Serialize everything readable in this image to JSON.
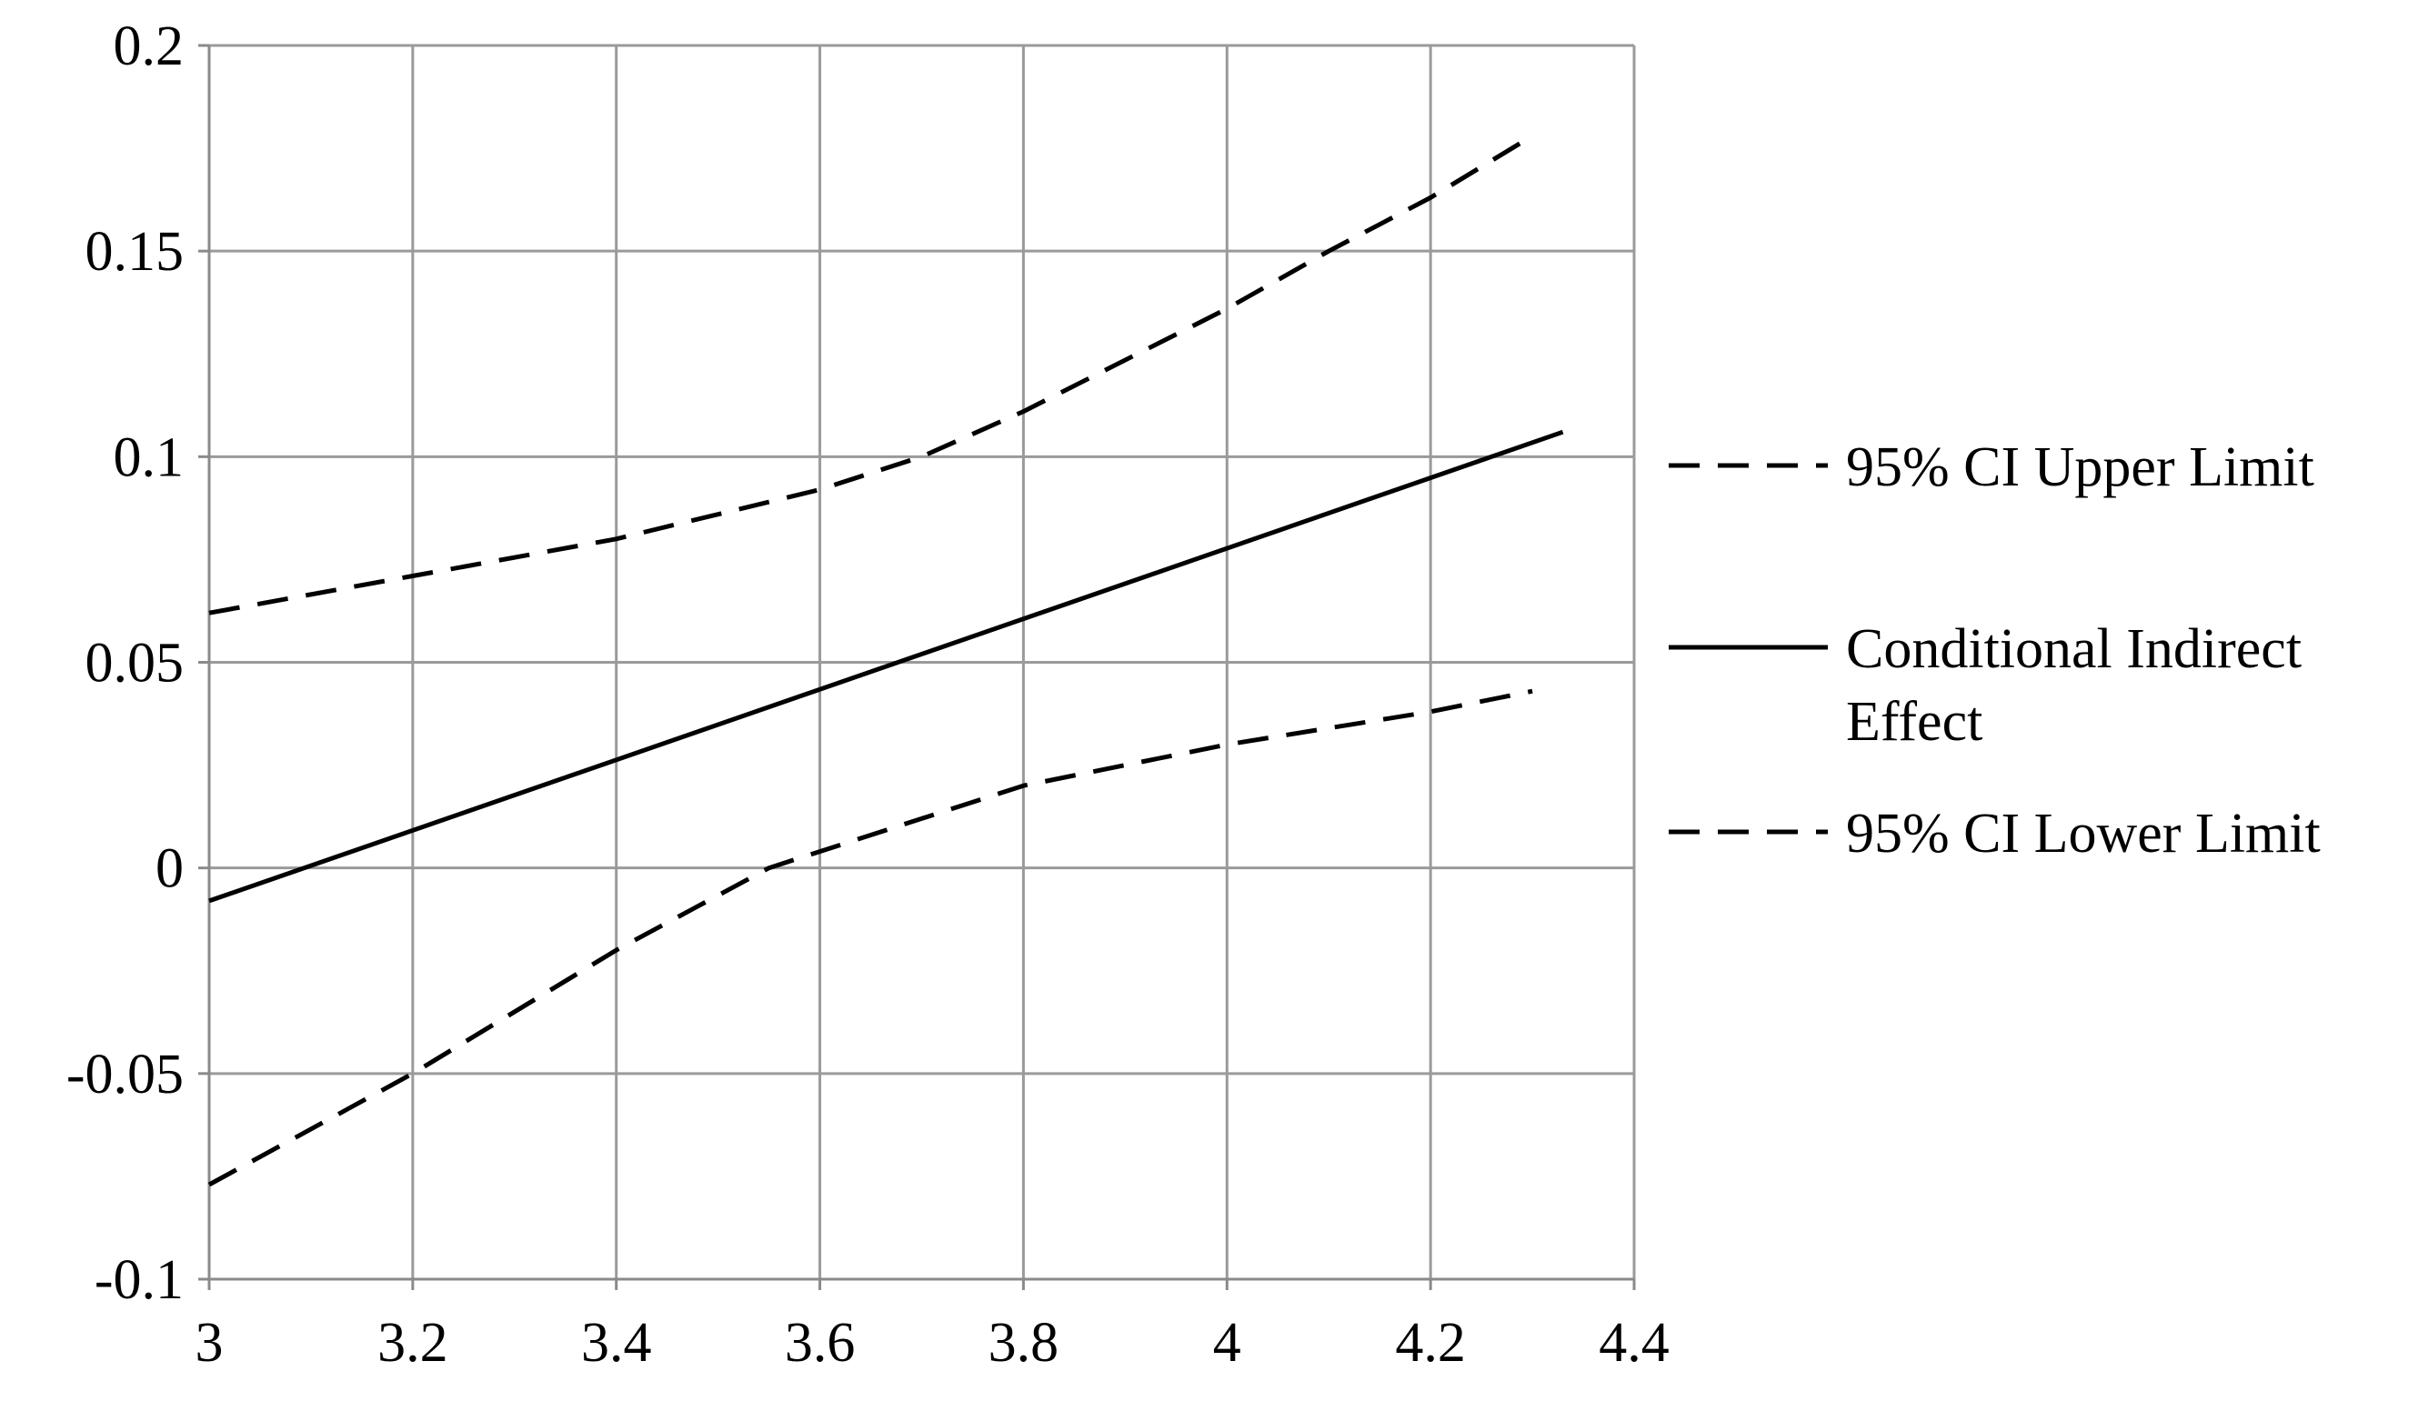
{
  "chart_data": {
    "type": "line",
    "title": "",
    "xlabel": "",
    "ylabel": "",
    "xlim": [
      3,
      4.4
    ],
    "ylim": [
      -0.1,
      0.2
    ],
    "xticks": [
      3,
      3.2,
      3.4,
      3.6,
      3.8,
      4,
      4.2,
      4.4
    ],
    "xtick_labels": [
      "3",
      "3.2",
      "3.4",
      "3.6",
      "3.8",
      "4",
      "4.2",
      "4.4"
    ],
    "yticks": [
      0.2,
      0.15,
      0.1,
      0.05,
      0,
      -0.05,
      -0.1
    ],
    "ytick_labels": [
      "0.2",
      "0.15",
      "0.1",
      "0.05",
      "0",
      "-0.05",
      "-0.1"
    ],
    "grid": true,
    "legend_position": "right",
    "series": [
      {
        "name": "95% CI Upper Limit",
        "style": "dashed",
        "color": "#000000",
        "x": [
          3.0,
          3.2,
          3.4,
          3.6,
          3.7,
          3.8,
          4.0,
          4.1,
          4.2,
          4.3
        ],
        "y": [
          0.062,
          0.071,
          0.08,
          0.092,
          0.1,
          0.111,
          0.136,
          0.15,
          0.163,
          0.178
        ]
      },
      {
        "name": "Conditional Indirect Effect",
        "style": "solid",
        "color": "#000000",
        "x": [
          3.0,
          4.33
        ],
        "y": [
          -0.008,
          0.106
        ]
      },
      {
        "name": "95% CI Lower Limit",
        "style": "dashed",
        "color": "#000000",
        "x": [
          3.0,
          3.2,
          3.4,
          3.55,
          3.6,
          3.8,
          4.0,
          4.2,
          4.3
        ],
        "y": [
          -0.077,
          -0.05,
          -0.02,
          0.0,
          0.004,
          0.02,
          0.03,
          0.038,
          0.043
        ]
      }
    ],
    "legend": [
      {
        "lines": [
          "95% CI Upper Limit"
        ],
        "style": "dashed"
      },
      {
        "lines": [
          "Conditional Indirect",
          "Effect"
        ],
        "style": "solid"
      },
      {
        "lines": [
          "95% CI Lower Limit"
        ],
        "style": "dashed"
      }
    ]
  }
}
